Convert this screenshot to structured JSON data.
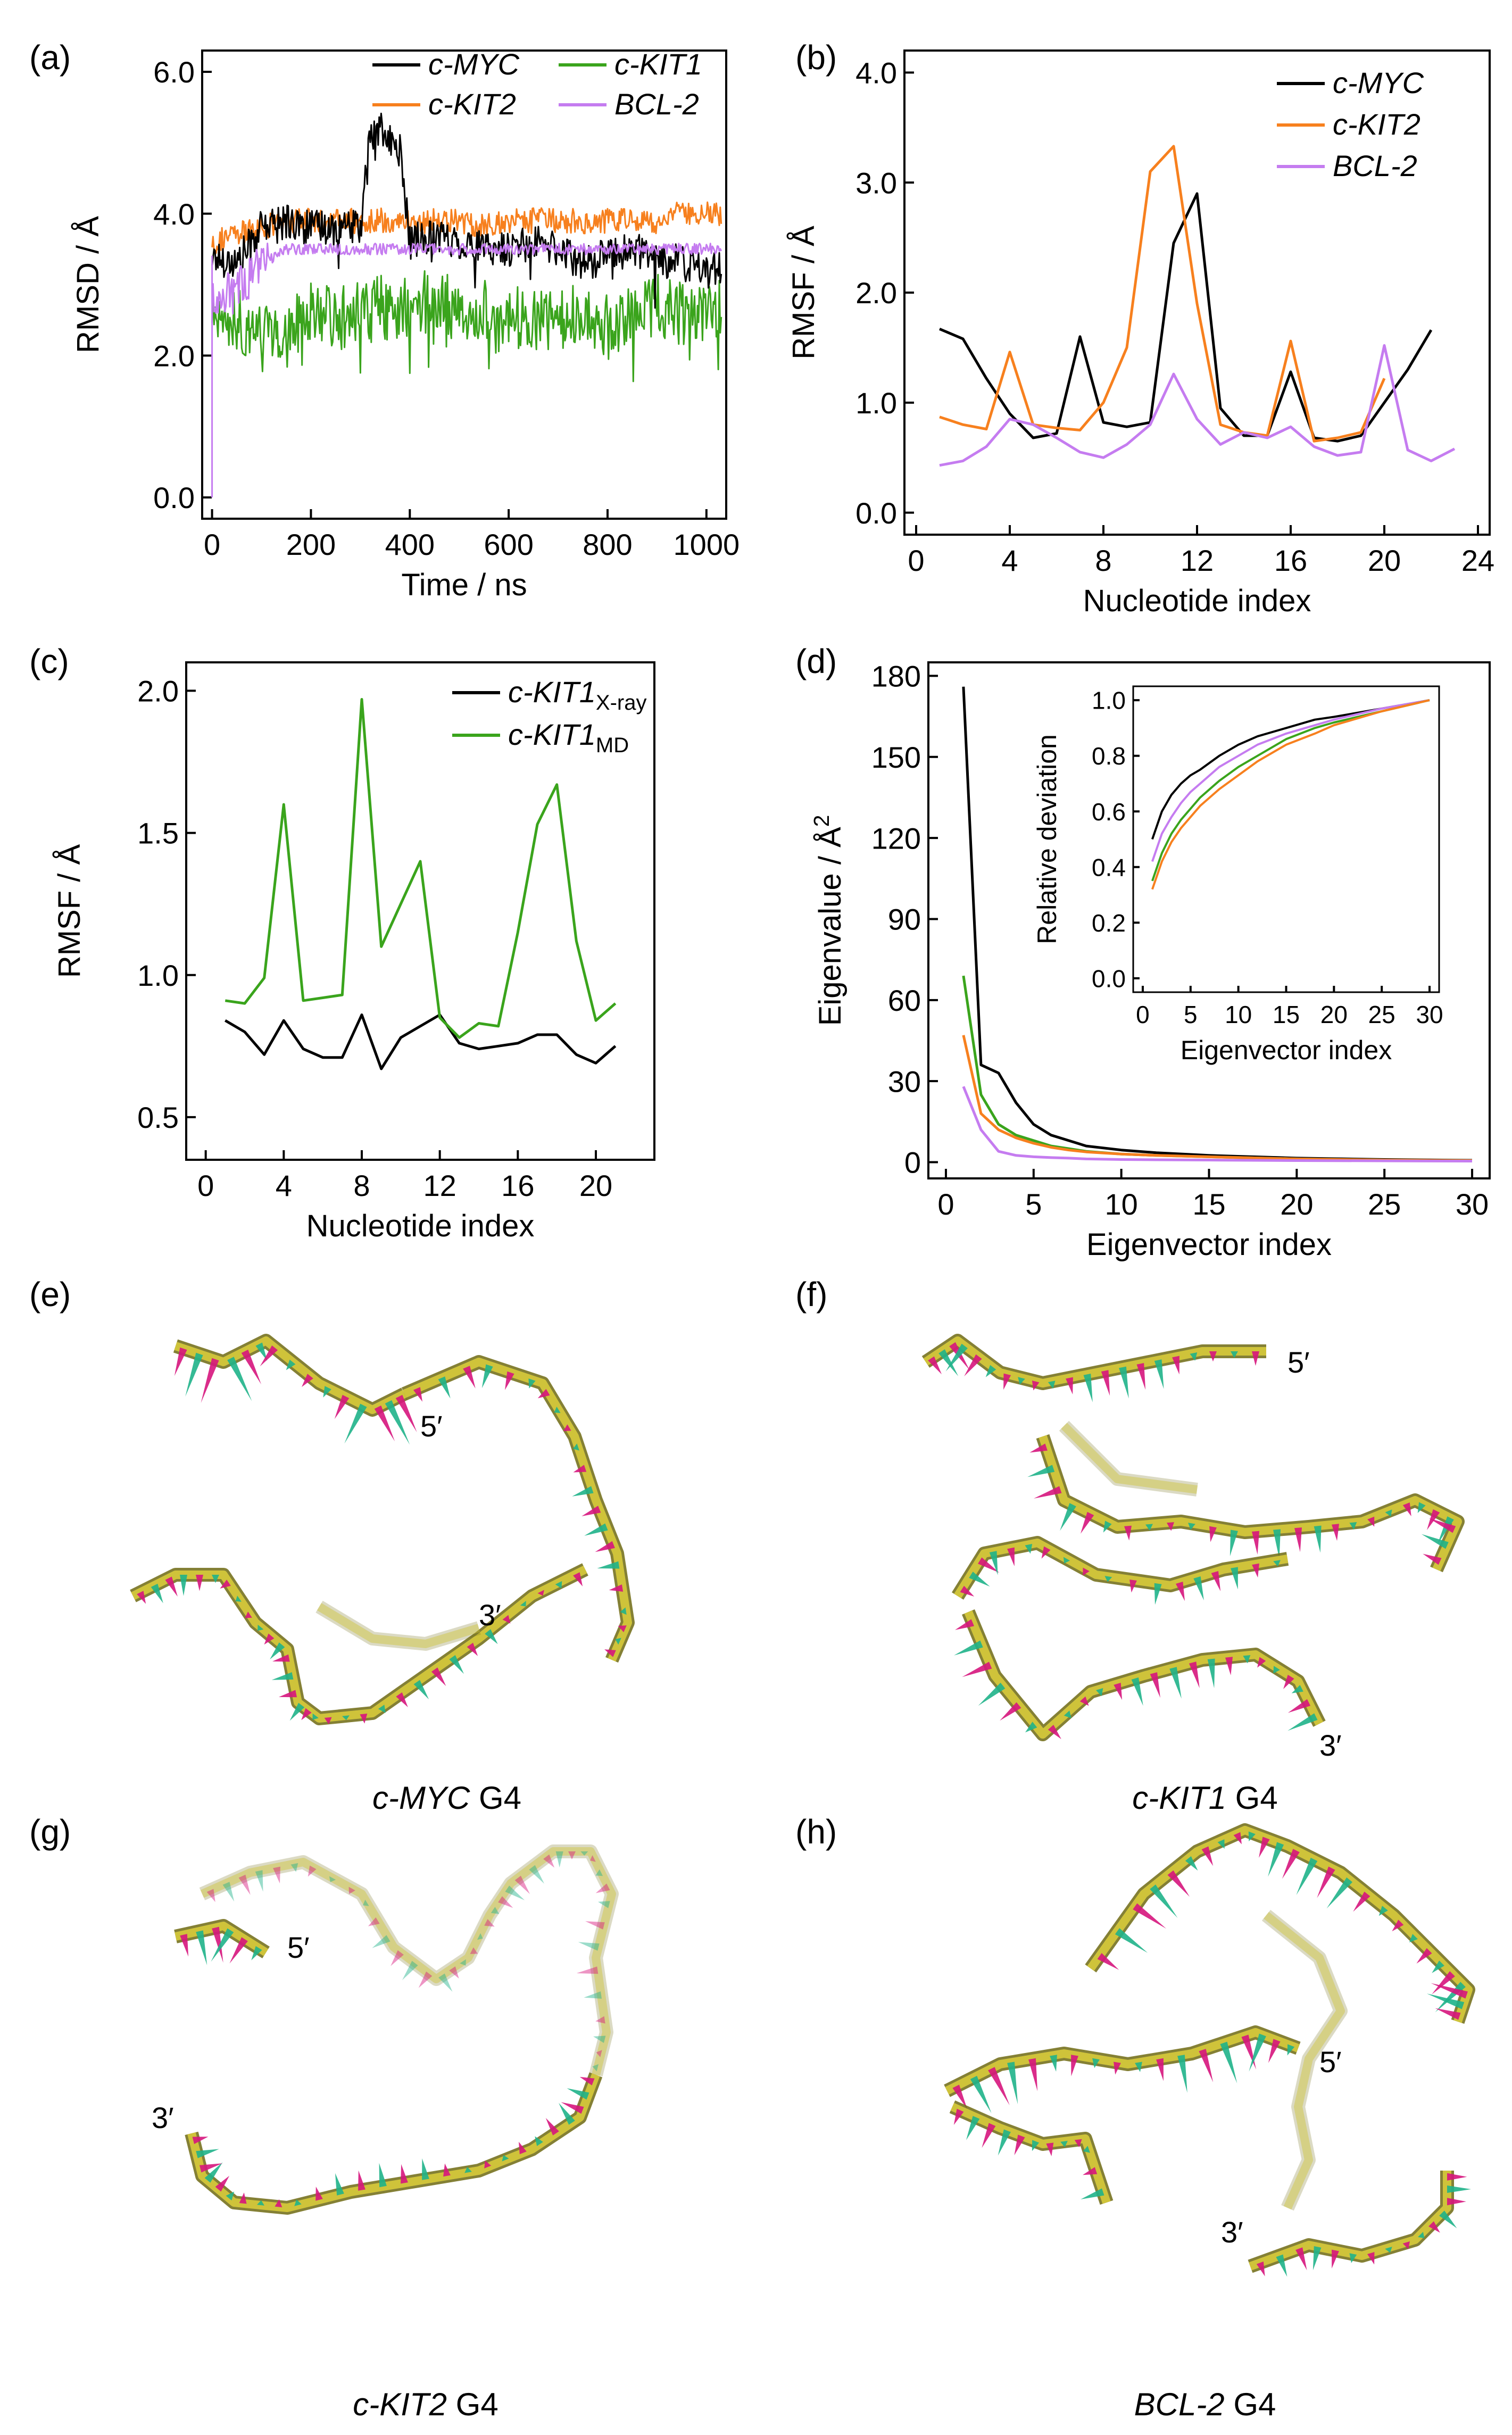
{
  "colors": {
    "black": "#000000",
    "orange": "#f7801e",
    "green": "#3aa41c",
    "purple": "#c57cf0",
    "teal": "#1fb28a",
    "magenta": "#d6157d",
    "tube": "#cfc33a",
    "tube_dark": "#6f6a12"
  },
  "panel_labels": [
    "(a)",
    "(b)",
    "(c)",
    "(d)",
    "(e)",
    "(f)",
    "(g)",
    "(h)"
  ],
  "chart_data": [
    {
      "panel": "(a)",
      "type": "line",
      "xlabel": "Time / ns",
      "ylabel": "RMSD / Å",
      "xlim": [
        -20,
        1040
      ],
      "ylim": [
        -0.3,
        6.3
      ],
      "xticks": [
        0,
        200,
        400,
        600,
        800,
        1000
      ],
      "yticks": [
        "0.0",
        "2.0",
        "4.0",
        "6.0"
      ],
      "legend": "top",
      "x": [
        0,
        50,
        100,
        150,
        200,
        250,
        300,
        320,
        340,
        360,
        380,
        400,
        450,
        500,
        550,
        600,
        650,
        700,
        750,
        800,
        850,
        900,
        950,
        1000,
        1030
      ],
      "series": [
        {
          "name": "c-MYC",
          "color": "#000000",
          "values": [
            3.4,
            3.3,
            3.8,
            3.9,
            3.8,
            3.8,
            3.8,
            5.1,
            5.2,
            5.0,
            4.9,
            3.6,
            3.7,
            3.6,
            3.5,
            3.5,
            3.6,
            3.5,
            3.3,
            3.4,
            3.5,
            3.4,
            3.3,
            3.2,
            3.2
          ]
        },
        {
          "name": "c-KIT2",
          "color": "#f7801e",
          "values": [
            3.6,
            3.7,
            3.8,
            3.9,
            3.9,
            3.9,
            3.9,
            3.9,
            3.9,
            3.9,
            3.9,
            3.9,
            3.9,
            3.9,
            3.8,
            3.9,
            3.9,
            3.9,
            3.9,
            3.9,
            3.9,
            3.9,
            4.0,
            4.0,
            4.0
          ]
        },
        {
          "name": "c-KIT1",
          "color": "#3aa41c",
          "values": [
            2.6,
            2.5,
            2.3,
            2.4,
            2.6,
            2.5,
            2.6,
            2.6,
            2.7,
            2.6,
            2.6,
            2.7,
            2.8,
            2.6,
            2.7,
            2.6,
            2.5,
            2.5,
            2.6,
            2.4,
            2.6,
            2.7,
            2.6,
            2.6,
            2.7
          ]
        },
        {
          "name": "BCL-2",
          "color": "#c57cf0",
          "values": [
            2.8,
            2.9,
            3.3,
            3.5,
            3.5,
            3.5,
            3.5,
            3.5,
            3.5,
            3.5,
            3.5,
            3.5,
            3.5,
            3.5,
            3.5,
            3.5,
            3.5,
            3.5,
            3.5,
            3.5,
            3.5,
            3.5,
            3.5,
            3.5,
            3.5
          ]
        }
      ]
    },
    {
      "panel": "(b)",
      "type": "line",
      "xlabel": "Nucleotide index",
      "ylabel": "RMSF / Å",
      "xlim": [
        -0.5,
        24.5
      ],
      "ylim": [
        -0.2,
        4.2
      ],
      "xticks": [
        0,
        4,
        8,
        12,
        16,
        20,
        24
      ],
      "yticks": [
        "0.0",
        "1.0",
        "2.0",
        "3.0",
        "4.0"
      ],
      "legend": "top-right",
      "series": [
        {
          "name": "c-MYC",
          "color": "#000000",
          "x": [
            1,
            2,
            3,
            4,
            5,
            6,
            7,
            8,
            9,
            10,
            11,
            12,
            13,
            14,
            15,
            16,
            17,
            18,
            19,
            20,
            21,
            22
          ],
          "values": [
            1.67,
            1.58,
            1.22,
            0.9,
            0.68,
            0.72,
            1.6,
            0.82,
            0.78,
            0.82,
            2.45,
            2.9,
            0.95,
            0.7,
            0.7,
            1.28,
            0.68,
            0.65,
            0.7,
            1.0,
            1.3,
            1.66
          ]
        },
        {
          "name": "c-KIT2",
          "color": "#f7801e",
          "x": [
            1,
            2,
            3,
            4,
            5,
            6,
            7,
            8,
            9,
            10,
            11,
            12,
            13,
            14,
            15,
            16,
            17,
            18,
            19,
            20
          ],
          "values": [
            0.87,
            0.8,
            0.76,
            1.46,
            0.8,
            0.77,
            0.75,
            1.0,
            1.5,
            3.1,
            3.33,
            1.9,
            0.8,
            0.73,
            0.7,
            1.56,
            0.65,
            0.68,
            0.73,
            1.22
          ]
        },
        {
          "name": "BCL-2",
          "color": "#c57cf0",
          "x": [
            1,
            2,
            3,
            4,
            5,
            6,
            7,
            8,
            9,
            10,
            11,
            12,
            13,
            14,
            15,
            16,
            17,
            18,
            19,
            20,
            21,
            22,
            23
          ],
          "values": [
            0.43,
            0.47,
            0.6,
            0.85,
            0.8,
            0.68,
            0.55,
            0.5,
            0.62,
            0.8,
            1.26,
            0.85,
            0.62,
            0.73,
            0.68,
            0.78,
            0.6,
            0.52,
            0.55,
            1.52,
            0.57,
            0.47,
            0.58
          ]
        }
      ]
    },
    {
      "panel": "(c)",
      "type": "line",
      "xlabel": "Nucleotide index",
      "ylabel": "RMSF / Å",
      "xlim": [
        -1,
        23
      ],
      "ylim": [
        0.35,
        2.1
      ],
      "xticks": [
        0,
        4,
        8,
        12,
        16,
        20
      ],
      "yticks": [
        "0.5",
        "1.0",
        "1.5",
        "2.0"
      ],
      "legend": "top-right",
      "series": [
        {
          "name": "c-KIT1",
          "subscript": "X-ray",
          "color": "#000000",
          "x": [
            1,
            2,
            3,
            4,
            5,
            6,
            7,
            8,
            9,
            10,
            11,
            12,
            13,
            14,
            15,
            16,
            17,
            18,
            19,
            20,
            21
          ],
          "values": [
            0.84,
            0.8,
            0.72,
            0.84,
            0.74,
            0.71,
            0.71,
            0.86,
            0.67,
            0.78,
            0.82,
            0.86,
            0.76,
            0.74,
            0.75,
            0.76,
            0.79,
            0.79,
            0.72,
            0.69,
            0.75
          ]
        },
        {
          "name": "c-KIT1",
          "subscript": "MD",
          "color": "#3aa41c",
          "x": [
            1,
            2,
            3,
            4,
            5,
            6,
            7,
            8,
            9,
            10,
            11,
            12,
            13,
            14,
            15,
            16,
            17,
            18,
            19,
            20,
            21
          ],
          "values": [
            0.91,
            0.9,
            0.99,
            1.6,
            0.91,
            0.92,
            0.93,
            1.97,
            1.1,
            1.25,
            1.4,
            0.85,
            0.78,
            0.83,
            0.82,
            1.15,
            1.53,
            1.67,
            1.12,
            0.84,
            0.9
          ]
        }
      ]
    },
    {
      "panel": "(d)",
      "type": "line",
      "xlabel": "Eigenvector index",
      "ylabel": "Eigenvalue / Å",
      "ylabel_sup": "2",
      "xlim": [
        -1,
        31
      ],
      "ylim": [
        -6,
        185
      ],
      "xticks": [
        0,
        5,
        10,
        15,
        20,
        25,
        30
      ],
      "yticks": [
        0,
        30,
        60,
        90,
        120,
        150,
        180
      ],
      "x": [
        1,
        2,
        3,
        4,
        5,
        6,
        7,
        8,
        10,
        12,
        15,
        20,
        25,
        30
      ],
      "series": [
        {
          "name": "c-MYC",
          "color": "#000000",
          "values": [
            176,
            36,
            33,
            22,
            14,
            10,
            8,
            6,
            4.5,
            3.5,
            2.5,
            1.5,
            1,
            0.7
          ]
        },
        {
          "name": "c-KIT1",
          "color": "#3aa41c",
          "values": [
            69,
            25,
            14,
            10,
            8,
            6,
            5,
            4,
            3,
            2.5,
            2,
            1.2,
            0.8,
            0.6
          ]
        },
        {
          "name": "c-KIT2",
          "color": "#f7801e",
          "values": [
            47,
            18,
            12,
            9,
            7,
            5.5,
            4.5,
            3.8,
            3,
            2.5,
            2,
            1.2,
            0.8,
            0.6
          ]
        },
        {
          "name": "BCL-2",
          "color": "#c57cf0",
          "values": [
            28,
            12,
            4,
            2.5,
            2,
            1.7,
            1.5,
            1.2,
            1,
            0.9,
            0.8,
            0.6,
            0.5,
            0.4
          ]
        }
      ],
      "inset": {
        "xlabel": "Eigenvector index",
        "ylabel": "Relative deviation",
        "xlim": [
          -1,
          31
        ],
        "ylim": [
          -0.05,
          1.05
        ],
        "xticks": [
          0,
          5,
          10,
          15,
          20,
          25,
          30
        ],
        "yticks": [
          "0.0",
          "0.2",
          "0.4",
          "0.6",
          "0.8",
          "1.0"
        ],
        "x": [
          1,
          2,
          3,
          4,
          5,
          6,
          8,
          10,
          12,
          15,
          18,
          20,
          25,
          30
        ],
        "series": [
          {
            "name": "c-MYC",
            "color": "#000000",
            "values": [
              0.5,
              0.6,
              0.66,
              0.7,
              0.73,
              0.75,
              0.8,
              0.84,
              0.87,
              0.9,
              0.93,
              0.94,
              0.97,
              1.0
            ]
          },
          {
            "name": "BCL-2",
            "color": "#c57cf0",
            "values": [
              0.42,
              0.52,
              0.58,
              0.63,
              0.67,
              0.7,
              0.76,
              0.8,
              0.84,
              0.88,
              0.91,
              0.93,
              0.97,
              1.0
            ]
          },
          {
            "name": "c-KIT1",
            "color": "#3aa41c",
            "values": [
              0.35,
              0.45,
              0.52,
              0.57,
              0.61,
              0.65,
              0.71,
              0.76,
              0.8,
              0.86,
              0.9,
              0.92,
              0.96,
              1.0
            ]
          },
          {
            "name": "c-KIT2",
            "color": "#f7801e",
            "values": [
              0.32,
              0.42,
              0.49,
              0.54,
              0.58,
              0.62,
              0.68,
              0.73,
              0.78,
              0.84,
              0.88,
              0.91,
              0.96,
              1.0
            ]
          }
        ]
      }
    }
  ],
  "structures": [
    {
      "panel": "(e)",
      "caption_italic": "c-MYC",
      "caption_rest": " G4",
      "label_5": "5′",
      "label_3": "3′"
    },
    {
      "panel": "(f)",
      "caption_italic": "c-KIT1",
      "caption_rest": " G4",
      "label_5": "5′",
      "label_3": "3′"
    },
    {
      "panel": "(g)",
      "caption_italic": "c-KIT2",
      "caption_rest": " G4",
      "label_5": "5′",
      "label_3": "3′"
    },
    {
      "panel": "(h)",
      "caption_italic": "BCL-2",
      "caption_rest": " G4",
      "label_5": "5′",
      "label_3": "3′"
    }
  ]
}
